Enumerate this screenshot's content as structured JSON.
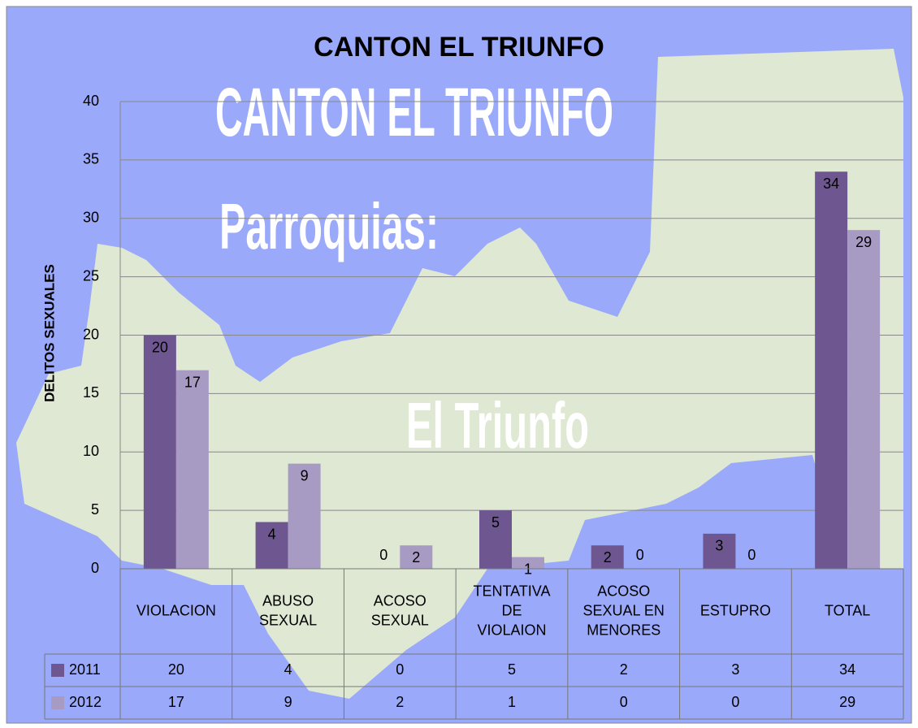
{
  "chart_data": {
    "type": "bar",
    "title": "CANTON EL TRIUNFO",
    "y_label": "DELITOS SEXUALES",
    "annotations": [
      "CANTON EL TRIUNFO",
      "Parroquias:",
      "El Triunfo"
    ],
    "categories": [
      "VIOLACION",
      "ABUSO SEXUAL",
      "ACOSO SEXUAL",
      "TENTATIVA DE VIOLAION",
      "ACOSO SEXUAL EN MENORES",
      "ESTUPRO",
      "TOTAL"
    ],
    "series": [
      {
        "name": "2011",
        "color": "#6e5790",
        "values": [
          20,
          4,
          0,
          5,
          2,
          3,
          34
        ]
      },
      {
        "name": "2012",
        "color": "#a89bc3",
        "values": [
          17,
          9,
          2,
          1,
          0,
          0,
          29
        ]
      }
    ],
    "ylim": [
      0,
      40
    ],
    "yticks": [
      0,
      5,
      10,
      15,
      20,
      25,
      30,
      35,
      40
    ],
    "grid": true,
    "data_table": true
  }
}
